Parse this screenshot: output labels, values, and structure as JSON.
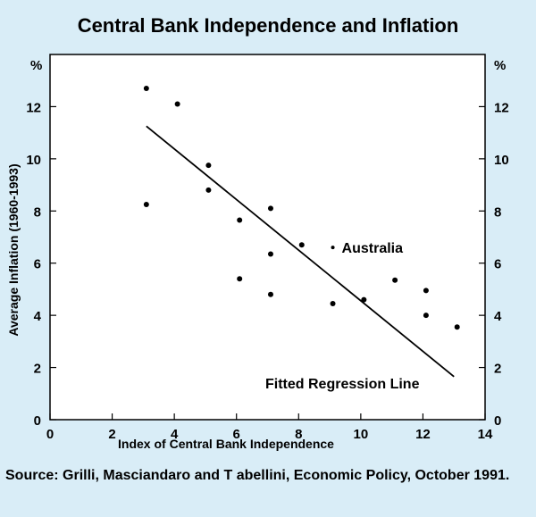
{
  "chart_data": {
    "type": "scatter",
    "title": "Central Bank Independence and Inflation",
    "xlabel": "Index of Central Bank Independence",
    "ylabel": "Average Inflation (1960-1993)",
    "y_unit": "%",
    "xlim": [
      0,
      14
    ],
    "ylim": [
      0,
      14
    ],
    "x_ticks": [
      0,
      2,
      4,
      6,
      8,
      10,
      12,
      14
    ],
    "y_ticks": [
      0,
      2,
      4,
      6,
      8,
      10,
      12
    ],
    "grid": false,
    "points": [
      {
        "x": 3.1,
        "y": 12.7
      },
      {
        "x": 3.1,
        "y": 8.25
      },
      {
        "x": 4.1,
        "y": 12.1
      },
      {
        "x": 5.1,
        "y": 9.75
      },
      {
        "x": 5.1,
        "y": 8.8
      },
      {
        "x": 6.1,
        "y": 7.65
      },
      {
        "x": 6.1,
        "y": 5.4
      },
      {
        "x": 7.1,
        "y": 8.1
      },
      {
        "x": 7.1,
        "y": 6.35
      },
      {
        "x": 7.1,
        "y": 4.8
      },
      {
        "x": 8.1,
        "y": 6.7
      },
      {
        "x": 9.1,
        "y": 6.6,
        "label": "Australia"
      },
      {
        "x": 9.1,
        "y": 4.45
      },
      {
        "x": 10.1,
        "y": 4.6
      },
      {
        "x": 11.1,
        "y": 5.35
      },
      {
        "x": 12.1,
        "y": 4.95
      },
      {
        "x": 12.1,
        "y": 4.0
      },
      {
        "x": 13.1,
        "y": 3.55
      }
    ],
    "regression_line": {
      "label": "Fitted Regression Line",
      "start": {
        "x": 3.1,
        "y": 11.25
      },
      "end": {
        "x": 13.0,
        "y": 1.65
      }
    }
  },
  "source_note": "Source: Grilli, Masciandaro and T abellini, Economic Policy, October 1991."
}
